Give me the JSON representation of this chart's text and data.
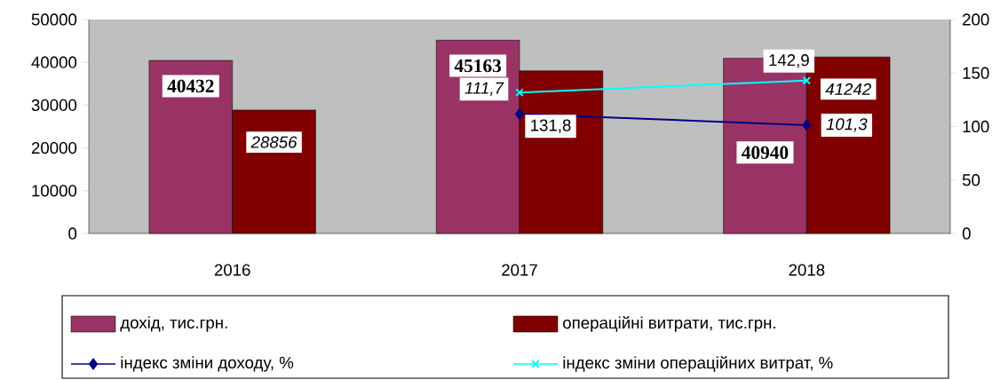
{
  "chart_data": {
    "type": "bar",
    "categories": [
      "2016",
      "2017",
      "2018"
    ],
    "series": [
      {
        "name": "дохід, тис.грн.",
        "color": "#993366",
        "values": [
          40432,
          45163,
          40940
        ],
        "value_labels": [
          "40432",
          "45163",
          "40940"
        ]
      },
      {
        "name": "операційні витрати, тис.грн.",
        "color": "#800000",
        "values": [
          28856,
          38000,
          41242
        ],
        "value_labels": [
          "28856",
          null,
          "41242"
        ]
      },
      {
        "name": "індекс зміни доходу, %",
        "type": "line",
        "axis": "y2",
        "color": "#000080",
        "marker": "diamond",
        "values": [
          null,
          111.7,
          101.3
        ],
        "value_labels": [
          null,
          "111,7",
          "101,3"
        ]
      },
      {
        "name": "індекс зміни операційних витрат, %",
        "type": "line",
        "axis": "y2",
        "color": "#00ffff",
        "marker": "cross",
        "values": [
          null,
          131.8,
          142.9
        ],
        "value_labels": [
          null,
          "131,8",
          "142,9"
        ]
      }
    ],
    "ylim": [
      0,
      50000
    ],
    "yticks": [
      0,
      10000,
      20000,
      30000,
      40000,
      50000
    ],
    "y2lim": [
      0,
      200
    ],
    "y2ticks": [
      0,
      50,
      100,
      150,
      200
    ],
    "legend": "bottom"
  }
}
